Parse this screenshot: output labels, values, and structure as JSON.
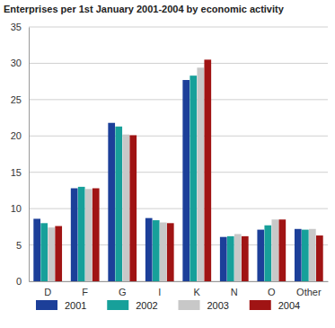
{
  "chart_data": {
    "type": "bar",
    "title": "Enterprises per 1st January 2001-2004 by economic activity",
    "categories": [
      "D",
      "F",
      "G",
      "I",
      "K",
      "N",
      "O",
      "Other"
    ],
    "series": [
      {
        "name": "2001",
        "color": "#1c3f99",
        "values": [
          8.6,
          12.8,
          21.8,
          8.7,
          27.7,
          6.1,
          7.1,
          7.2
        ]
      },
      {
        "name": "2002",
        "color": "#17a09a",
        "values": [
          8.0,
          13.0,
          21.3,
          8.4,
          28.3,
          6.2,
          7.7,
          7.1
        ]
      },
      {
        "name": "2003",
        "color": "#c8c8c8",
        "values": [
          7.4,
          12.7,
          20.2,
          8.1,
          29.4,
          6.5,
          8.5,
          7.2
        ]
      },
      {
        "name": "2004",
        "color": "#a01414",
        "values": [
          7.6,
          12.8,
          20.1,
          8.0,
          30.5,
          6.2,
          8.5,
          6.3
        ]
      }
    ],
    "ylim": [
      0,
      35
    ],
    "yticks": [
      0,
      5,
      10,
      15,
      20,
      25,
      30,
      35
    ],
    "grid": true,
    "legend": "bottom"
  }
}
